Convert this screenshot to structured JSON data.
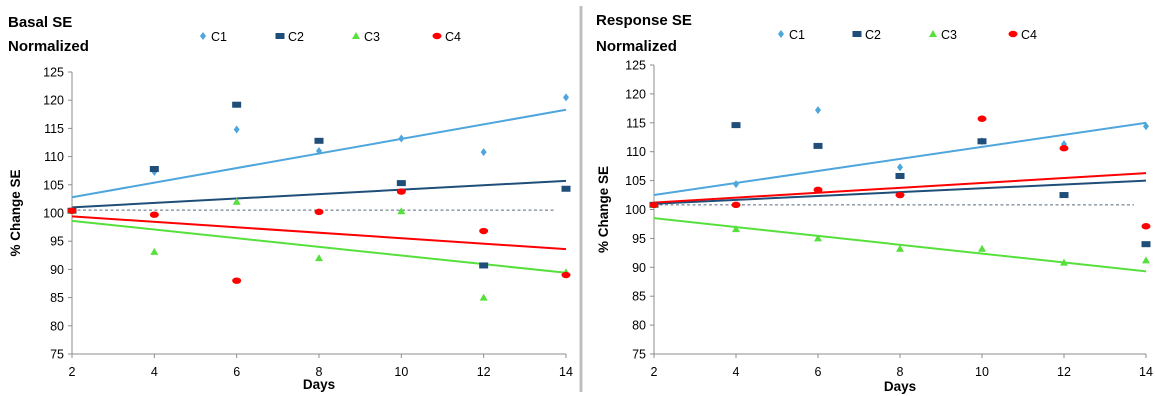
{
  "chart_data": [
    {
      "type": "scatter",
      "title": "Basal SE\nNormalized",
      "xlabel": "Days",
      "ylabel": "% Change SE",
      "xlim": [
        2,
        14
      ],
      "ylim": [
        75,
        125
      ],
      "x_ticks": [
        "2",
        "4",
        "6",
        "8",
        "10",
        "12",
        "14"
      ],
      "y_ticks": [
        "75",
        "80",
        "85",
        "90",
        "95",
        "100",
        "105",
        "110",
        "115",
        "120",
        "125"
      ],
      "grid": false,
      "legend_position": "top",
      "baseline": 100.5,
      "series": [
        {
          "name": "C1",
          "marker": "diamond",
          "color": "#4ea6dc",
          "x": [
            2,
            4,
            6,
            8,
            10,
            12,
            14
          ],
          "y": [
            100.4,
            107.3,
            114.8,
            111.0,
            113.2,
            110.8,
            120.5
          ],
          "trend": [
            102.8,
            118.3
          ]
        },
        {
          "name": "C2",
          "marker": "square",
          "color": "#1f4e79",
          "x": [
            2,
            4,
            6,
            8,
            10,
            12,
            14
          ],
          "y": [
            100.4,
            107.8,
            119.2,
            112.8,
            105.3,
            90.7,
            104.3
          ],
          "trend": [
            101.0,
            105.7
          ]
        },
        {
          "name": "C3",
          "marker": "triangle",
          "color": "#55e03c",
          "x": [
            2,
            4,
            6,
            8,
            10,
            12,
            14
          ],
          "y": [
            100.4,
            93.1,
            102.0,
            92.0,
            100.3,
            85.0,
            89.5
          ],
          "trend": [
            98.6,
            89.4
          ]
        },
        {
          "name": "C4",
          "marker": "circle",
          "color": "#ff0000",
          "x": [
            2,
            4,
            6,
            8,
            10,
            12,
            14
          ],
          "y": [
            100.4,
            99.7,
            88.0,
            100.2,
            103.8,
            96.8,
            89.0
          ],
          "trend": [
            99.4,
            93.6
          ]
        }
      ]
    },
    {
      "type": "scatter",
      "title": "Response SE\nNormalized",
      "xlabel": "Days",
      "ylabel": "% Change SE",
      "xlim": [
        2,
        14
      ],
      "ylim": [
        75,
        125
      ],
      "x_ticks": [
        "2",
        "4",
        "6",
        "8",
        "10",
        "12",
        "14"
      ],
      "y_ticks": [
        "75",
        "80",
        "85",
        "90",
        "95",
        "100",
        "105",
        "110",
        "115",
        "120",
        "125"
      ],
      "grid": false,
      "legend_position": "top",
      "baseline": 100.8,
      "series": [
        {
          "name": "C1",
          "marker": "diamond",
          "color": "#4ea6dc",
          "x": [
            2,
            4,
            6,
            8,
            10,
            12,
            14
          ],
          "y": [
            100.8,
            104.4,
            117.2,
            107.3,
            111.8,
            111.3,
            114.4
          ],
          "trend": [
            102.5,
            115.0
          ]
        },
        {
          "name": "C2",
          "marker": "square",
          "color": "#1f4e79",
          "x": [
            2,
            4,
            6,
            8,
            10,
            12,
            14
          ],
          "y": [
            100.8,
            114.6,
            111.0,
            105.8,
            111.8,
            102.5,
            94.0
          ],
          "trend": [
            101.0,
            105.0
          ]
        },
        {
          "name": "C3",
          "marker": "triangle",
          "color": "#55e03c",
          "x": [
            2,
            4,
            6,
            8,
            10,
            12,
            14
          ],
          "y": [
            100.8,
            96.6,
            95.0,
            93.2,
            93.2,
            90.8,
            91.2
          ],
          "trend": [
            98.5,
            89.3
          ]
        },
        {
          "name": "C4",
          "marker": "circle",
          "color": "#ff0000",
          "x": [
            2,
            4,
            6,
            8,
            10,
            12,
            14
          ],
          "y": [
            100.8,
            100.8,
            103.4,
            102.5,
            115.7,
            110.6,
            97.1
          ],
          "trend": [
            101.2,
            106.3
          ]
        }
      ]
    }
  ]
}
